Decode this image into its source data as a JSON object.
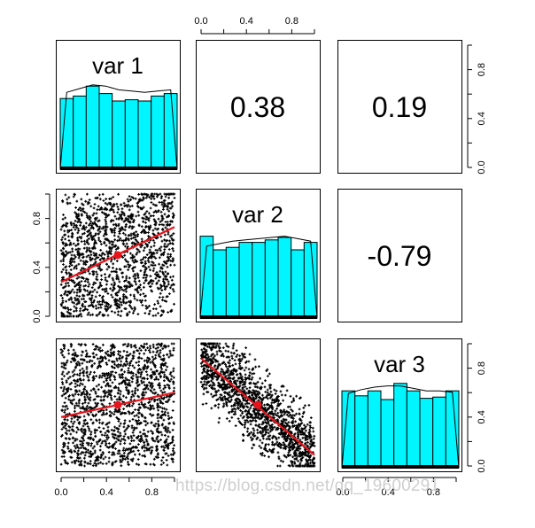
{
  "chart_data": {
    "type": "scatter-matrix",
    "variables": [
      "var 1",
      "var 2",
      "var 3"
    ],
    "correlations": [
      {
        "row": 1,
        "col": 2,
        "label": "0.38"
      },
      {
        "row": 1,
        "col": 3,
        "label": "0.19"
      },
      {
        "row": 2,
        "col": 3,
        "label": "-0.79"
      }
    ],
    "axis_range": [
      0,
      1
    ],
    "ticks": [
      0.0,
      0.2,
      0.4,
      0.6,
      0.8,
      1.0
    ],
    "tick_labels": [
      "0.0",
      "0.4",
      "0.8"
    ],
    "histograms": [
      {
        "variable": "var 1",
        "values": [
          0.57,
          0.59,
          0.67,
          0.61,
          0.55,
          0.56,
          0.55,
          0.59,
          0.61
        ],
        "density": [
          0.62,
          0.65,
          0.68,
          0.67,
          0.64,
          0.63,
          0.62,
          0.63,
          0.64
        ]
      },
      {
        "variable": "var 2",
        "values": [
          0.66,
          0.55,
          0.57,
          0.61,
          0.61,
          0.63,
          0.65,
          0.55,
          0.61
        ],
        "density": [
          0.58,
          0.6,
          0.62,
          0.63,
          0.64,
          0.65,
          0.66,
          0.64,
          0.62
        ]
      },
      {
        "variable": "var 3",
        "values": [
          0.62,
          0.58,
          0.62,
          0.55,
          0.68,
          0.62,
          0.56,
          0.57,
          0.62
        ],
        "density": [
          0.6,
          0.63,
          0.65,
          0.66,
          0.66,
          0.64,
          0.62,
          0.62,
          0.61
        ]
      }
    ],
    "scatter_panels": [
      {
        "row": 2,
        "col": 1,
        "fit_line": [
          [
            0,
            0.28
          ],
          [
            1,
            0.73
          ]
        ],
        "center": [
          0.5,
          0.5
        ]
      },
      {
        "row": 3,
        "col": 1,
        "fit_line": [
          [
            0,
            0.4
          ],
          [
            1,
            0.6
          ]
        ],
        "center": [
          0.5,
          0.5
        ]
      },
      {
        "row": 3,
        "col": 2,
        "fit_line": [
          [
            0,
            0.88
          ],
          [
            1,
            0.09
          ]
        ],
        "center": [
          0.5,
          0.5
        ]
      }
    ],
    "colors": {
      "bars": "#00f5ff",
      "points": "#000000",
      "fit": "#e8141b",
      "frame": "#000000"
    }
  },
  "watermark": "https://blog.csdn.net/qq_19600291"
}
